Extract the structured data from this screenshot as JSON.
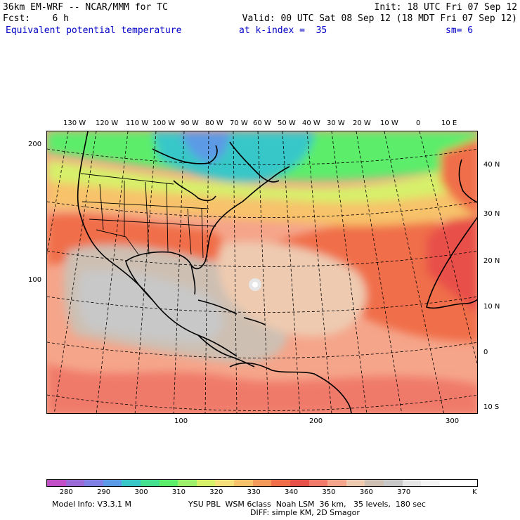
{
  "header": {
    "model_title": "36km EM-WRF -- NCAR/MMM for TC",
    "init": "Init: 18 UTC Fri 07 Sep 12",
    "fcst": "Fcst:    6 h",
    "valid": "Valid: 00 UTC Sat 08 Sep 12 (18 MDT Fri 07 Sep 12)",
    "field": "Equivalent potential temperature",
    "level": "at k-index =  35",
    "smooth": "sm= 6"
  },
  "map": {
    "lon_labels": [
      "130 W",
      "120 W",
      "110 W",
      "100 W",
      "90 W",
      "80 W",
      "70 W",
      "60 W",
      "50 W",
      "40 W",
      "30 W",
      "20 W",
      "10 W",
      "0",
      "10 E"
    ],
    "lat_labels": [
      "40 N",
      "30 N",
      "20 N",
      "10 N",
      "0",
      "10 S"
    ],
    "left_ticks": [
      "200",
      "100"
    ],
    "bottom_ticks": [
      "100",
      "200",
      "300"
    ],
    "icons": {
      "storm": "storm-center-icon"
    }
  },
  "colorbar": {
    "labels": [
      "280",
      "290",
      "300",
      "310",
      "320",
      "330",
      "340",
      "350",
      "360",
      "370",
      "K"
    ],
    "colors": [
      "#c24fc8",
      "#9a6ad6",
      "#7f7fe6",
      "#5b9ae6",
      "#37c7c8",
      "#43e08f",
      "#5ced6b",
      "#9cf06a",
      "#d7f06a",
      "#f5e07a",
      "#f7c26a",
      "#f59a5a",
      "#f06e4a",
      "#e8504a",
      "#f07a6a",
      "#f5a58a",
      "#eecab0",
      "#cdbfb2",
      "#c8c8c8",
      "#e6e6e6",
      "#f4f4f4",
      "#ffffff",
      "#ffffff"
    ]
  },
  "footer": {
    "model_info": "Model Info: V3.3.1 M",
    "physics": "YSU PBL  WSM 6class  Noah LSM  36 km,   35 levels,  180 sec",
    "dynamics": "DIFF: simple KM, 2D Smagor"
  }
}
